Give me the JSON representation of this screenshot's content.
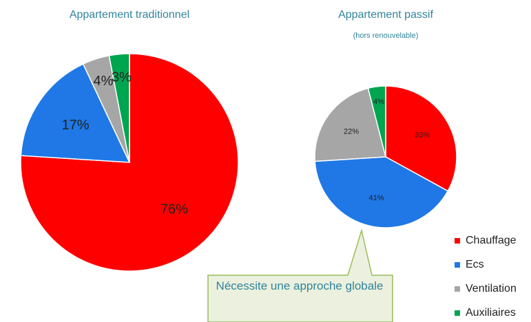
{
  "chart_data": [
    {
      "type": "pie",
      "title": "Appartement traditionnel",
      "categories": [
        "Chauffage",
        "Ecs",
        "Ventilation",
        "Auxiliaires"
      ],
      "values": [
        76,
        17,
        4,
        3
      ],
      "value_labels": [
        "76%",
        "17%",
        "4%",
        "3%"
      ],
      "colors": [
        "#ff0000",
        "#1f78e6",
        "#a6a6a6",
        "#00a550"
      ]
    },
    {
      "type": "pie",
      "title": "Appartement passif",
      "subtitle": "(hors renouvelable)",
      "categories": [
        "Chauffage",
        "Ecs",
        "Ventilation",
        "Auxiliaires"
      ],
      "values": [
        33,
        41,
        22,
        4
      ],
      "value_labels": [
        "33%",
        "41%",
        "22%",
        "4%"
      ],
      "colors": [
        "#ff0000",
        "#1f78e6",
        "#a6a6a6",
        "#00a550"
      ],
      "annotation": "Nécessite une approche globale"
    }
  ]
}
